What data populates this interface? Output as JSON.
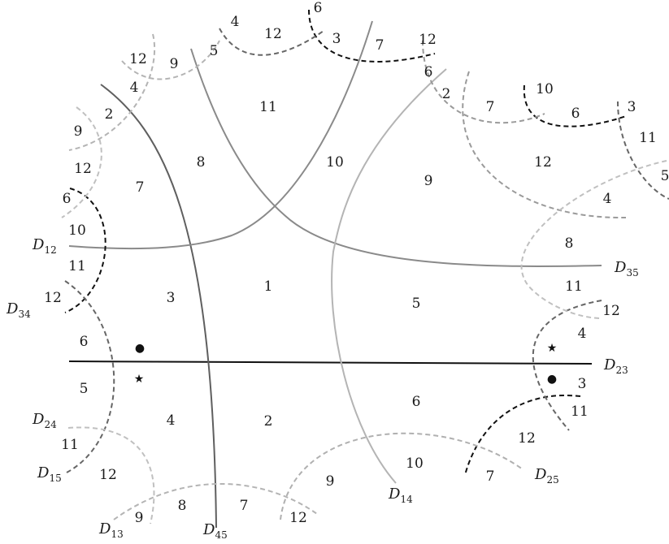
{
  "divisors": [
    {
      "name": "D",
      "sub": "12"
    },
    {
      "name": "D",
      "sub": "35"
    },
    {
      "name": "D",
      "sub": "34"
    },
    {
      "name": "D",
      "sub": "23"
    },
    {
      "name": "D",
      "sub": "24"
    },
    {
      "name": "D",
      "sub": "15"
    },
    {
      "name": "D",
      "sub": "25"
    },
    {
      "name": "D",
      "sub": "13"
    },
    {
      "name": "D",
      "sub": "45"
    },
    {
      "name": "D",
      "sub": "14"
    }
  ],
  "region_labels": [
    "1",
    "2",
    "3",
    "4",
    "5",
    "6",
    "7",
    "8",
    "9",
    "10",
    "11",
    "4",
    "12",
    "12",
    "3",
    "7",
    "12",
    "6",
    "2",
    "7",
    "10",
    "6",
    "3",
    "11",
    "5",
    "12",
    "9",
    "4",
    "5",
    "4",
    "12",
    "6",
    "2",
    "9",
    "12",
    "7",
    "6",
    "10",
    "11",
    "12",
    "4",
    "8",
    "11",
    "12",
    "3",
    "11",
    "12",
    "6",
    "10",
    "9",
    "7",
    "6",
    "5",
    "4",
    "11",
    "12",
    "9",
    "8",
    "7",
    "12"
  ],
  "markers": {
    "star": "★",
    "dot": "●"
  },
  "colors": {
    "black": "#111111",
    "dark_gray": "#5f5f5f",
    "mid_gray": "#8a8a8a",
    "light_gray": "#a9a9a9",
    "pale_gray": "#c0c0c0"
  }
}
